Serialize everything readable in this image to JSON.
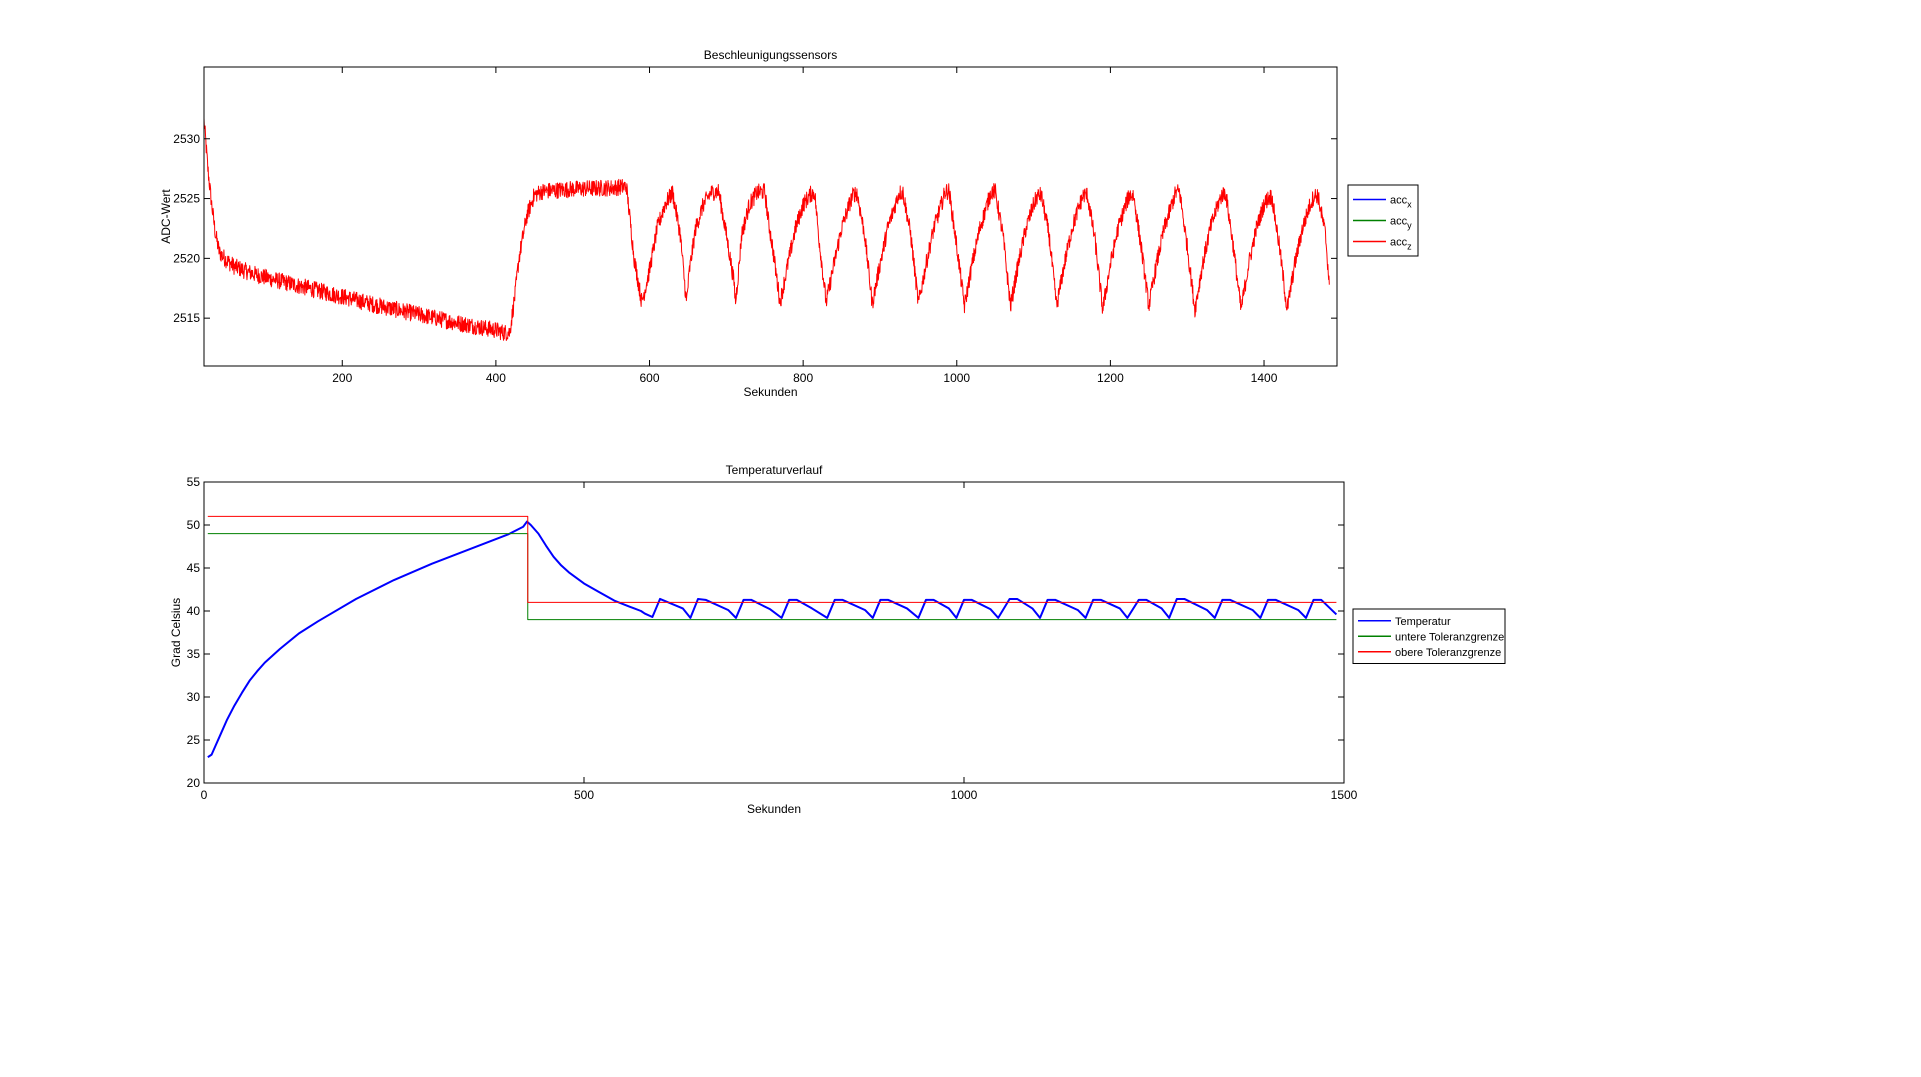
{
  "figure": {
    "background": "#ffffff"
  },
  "chart_data": [
    {
      "type": "line",
      "title": "Beschleunigungssensors",
      "xlabel": "Sekunden",
      "ylabel": "ADC-Wert",
      "xlim": [
        20,
        1495
      ],
      "ylim": [
        2511,
        2536
      ],
      "xticks": [
        200,
        400,
        600,
        800,
        1000,
        1200,
        1400
      ],
      "yticks": [
        2515,
        2520,
        2525,
        2530
      ],
      "grid": false,
      "legend_position": "outside-right",
      "legend": [
        {
          "base": "acc",
          "sub": "x",
          "color": "#0000ff"
        },
        {
          "base": "acc",
          "sub": "y",
          "color": "#008000"
        },
        {
          "base": "acc",
          "sub": "z",
          "color": "#ff0000"
        }
      ],
      "series": [
        {
          "name": "accz",
          "color": "#ff0000",
          "noise": 0.7,
          "x": [
            20,
            22,
            25,
            30,
            35,
            40,
            50,
            60,
            80,
            100,
            150,
            200,
            250,
            300,
            350,
            400,
            410,
            418,
            425,
            430,
            440,
            450,
            460,
            500,
            550,
            570,
            575,
            580,
            590,
            600,
            610,
            620,
            630,
            640,
            648,
            652,
            660,
            670,
            680,
            690,
            700,
            710,
            712,
            716,
            720,
            730,
            740,
            750,
            755,
            760,
            770,
            780,
            790,
            800,
            810,
            815,
            820,
            830,
            840,
            850,
            860,
            865,
            870,
            880,
            890,
            900,
            910,
            920,
            925,
            930,
            940,
            950,
            960,
            970,
            980,
            985,
            990,
            1000,
            1010,
            1020,
            1030,
            1040,
            1045,
            1050,
            1060,
            1070,
            1080,
            1090,
            1100,
            1105,
            1110,
            1120,
            1130,
            1140,
            1150,
            1160,
            1165,
            1170,
            1180,
            1190,
            1200,
            1210,
            1220,
            1225,
            1230,
            1240,
            1250,
            1260,
            1270,
            1280,
            1285,
            1290,
            1300,
            1310,
            1320,
            1330,
            1340,
            1345,
            1350,
            1360,
            1370,
            1380,
            1390,
            1400,
            1405,
            1410,
            1420,
            1430,
            1440,
            1450,
            1460,
            1465,
            1470,
            1480,
            1485
          ],
          "y": [
            2531.5,
            2530,
            2527.5,
            2524.5,
            2522,
            2520.5,
            2519.8,
            2519.3,
            2518.8,
            2518.4,
            2517.6,
            2516.8,
            2516,
            2515.3,
            2514.6,
            2514,
            2513.8,
            2513.8,
            2517,
            2520,
            2523.5,
            2525.3,
            2525.6,
            2525.8,
            2525.9,
            2526,
            2523,
            2520,
            2516.3,
            2519,
            2522.5,
            2524.5,
            2525.5,
            2522,
            2516.3,
            2519,
            2522.5,
            2524.5,
            2525.5,
            2525.6,
            2522,
            2518,
            2516.3,
            2519,
            2522,
            2524.5,
            2525.5,
            2525.6,
            2523,
            2521,
            2516.3,
            2519.5,
            2522.5,
            2524.5,
            2525.4,
            2525.5,
            2522,
            2516.3,
            2519.5,
            2522.5,
            2524.5,
            2525.3,
            2525.5,
            2522,
            2516.2,
            2519.5,
            2522.5,
            2524.5,
            2525.5,
            2525.5,
            2522,
            2516.2,
            2519.5,
            2522.5,
            2524.5,
            2525.6,
            2525.6,
            2521,
            2516,
            2519.5,
            2522.5,
            2524.6,
            2525.6,
            2525.6,
            2522,
            2516,
            2519.5,
            2522.5,
            2524.5,
            2525.2,
            2525.3,
            2522,
            2516,
            2519.5,
            2522.5,
            2524.5,
            2525.3,
            2525.3,
            2521.5,
            2515.7,
            2519.5,
            2522.5,
            2524.5,
            2525.3,
            2525.3,
            2521,
            2516,
            2519.5,
            2522.5,
            2524.5,
            2525.5,
            2525.6,
            2521,
            2515.7,
            2519.5,
            2522.5,
            2524.5,
            2525.3,
            2525.5,
            2521,
            2515.7,
            2519.5,
            2522.5,
            2524.5,
            2525,
            2525.2,
            2521,
            2515.7,
            2519.5,
            2522.5,
            2524.5,
            2525.2,
            2525.3,
            2522,
            2517.8
          ]
        }
      ]
    },
    {
      "type": "line",
      "title": "Temperaturverlauf",
      "xlabel": "Sekunden",
      "ylabel": "Grad Celsius",
      "xlim": [
        0,
        1500
      ],
      "ylim": [
        20,
        55
      ],
      "xticks": [
        0,
        500,
        1000,
        1500
      ],
      "yticks": [
        20,
        25,
        30,
        35,
        40,
        45,
        50,
        55
      ],
      "grid": false,
      "legend_position": "outside-right",
      "legend": [
        {
          "label": "Temperatur",
          "color": "#0000ff"
        },
        {
          "label": "untere Toleranzgrenze",
          "color": "#008000"
        },
        {
          "label": "obere Toleranzgrenze",
          "color": "#ff0000"
        }
      ],
      "series": [
        {
          "name": "Temperatur",
          "color": "#0000ff",
          "x": [
            5,
            10,
            15,
            20,
            30,
            40,
            50,
            60,
            70,
            80,
            100,
            125,
            150,
            200,
            250,
            300,
            350,
            400,
            420,
            425,
            430,
            440,
            450,
            460,
            470,
            480,
            500,
            520,
            540,
            560,
            575,
            580,
            590,
            600,
            630,
            640,
            650,
            660,
            690,
            700,
            710,
            720,
            745,
            760,
            770,
            780,
            800,
            820,
            830,
            840,
            870,
            880,
            890,
            900,
            925,
            940,
            950,
            960,
            980,
            990,
            1000,
            1010,
            1035,
            1045,
            1060,
            1070,
            1090,
            1100,
            1110,
            1120,
            1150,
            1160,
            1170,
            1180,
            1205,
            1215,
            1230,
            1240,
            1260,
            1270,
            1280,
            1290,
            1320,
            1330,
            1340,
            1350,
            1380,
            1390,
            1400,
            1410,
            1440,
            1450,
            1460,
            1470,
            1490
          ],
          "y": [
            23,
            23.3,
            24.3,
            25.3,
            27.3,
            29,
            30.5,
            31.9,
            33,
            34,
            35.6,
            37.4,
            38.8,
            41.4,
            43.6,
            45.5,
            47.2,
            48.9,
            49.8,
            50.4,
            50,
            49,
            47.6,
            46.3,
            45.3,
            44.5,
            43.2,
            42.2,
            41.2,
            40.5,
            40,
            39.7,
            39.3,
            41.4,
            40.3,
            39.2,
            41.4,
            41.3,
            40.1,
            39.2,
            41.3,
            41.3,
            40.2,
            39.2,
            41.3,
            41.3,
            40.3,
            39.2,
            41.3,
            41.3,
            40.1,
            39.2,
            41.3,
            41.3,
            40.3,
            39.2,
            41.3,
            41.3,
            40.3,
            39.2,
            41.3,
            41.3,
            40.2,
            39.2,
            41.4,
            41.4,
            40.3,
            39.2,
            41.3,
            41.3,
            40.1,
            39.2,
            41.3,
            41.3,
            40.3,
            39.2,
            41.3,
            41.3,
            40.3,
            39.2,
            41.4,
            41.4,
            40.1,
            39.2,
            41.3,
            41.3,
            40.1,
            39.2,
            41.3,
            41.3,
            40.1,
            39.2,
            41.3,
            41.3,
            39.6
          ]
        },
        {
          "name": "untere Toleranzgrenze",
          "color": "#008000",
          "x": [
            5,
            426,
            426,
            1490
          ],
          "y": [
            49,
            49,
            39,
            39
          ]
        },
        {
          "name": "obere Toleranzgrenze",
          "color": "#ff0000",
          "x": [
            5,
            426,
            426,
            1490
          ],
          "y": [
            51,
            51,
            41,
            41
          ]
        }
      ]
    }
  ]
}
